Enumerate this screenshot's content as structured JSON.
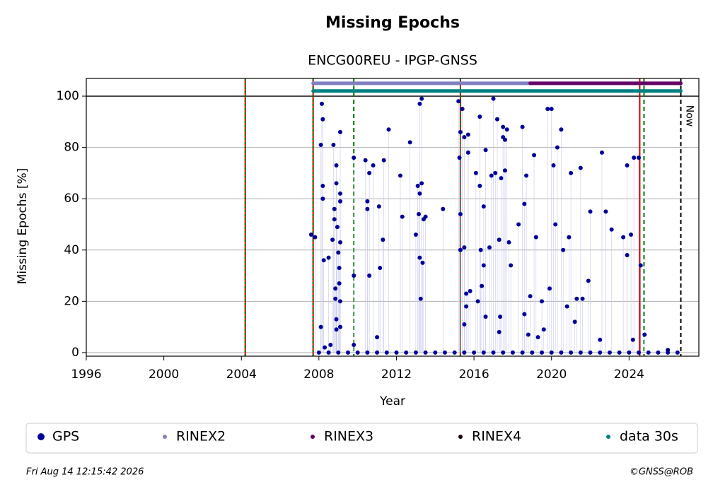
{
  "chart_data": {
    "type": "scatter",
    "title": "Missing Epochs",
    "subtitle": "ENCG00REU - IPGP-GNSS",
    "x_label": "Year",
    "y_label": "Missing Epochs [%]",
    "xlim": [
      1996.0,
      2027.6
    ],
    "ylim": [
      -1.4,
      106.9
    ],
    "xticks": [
      1996,
      2000,
      2004,
      2008,
      2012,
      2016,
      2020,
      2024
    ],
    "yticks": [
      0,
      20,
      40,
      60,
      80,
      100
    ],
    "grid": true,
    "ref_line": 100,
    "series": [
      {
        "name": "GPS",
        "color": "#000099",
        "x": [
          2007.6,
          2007.8,
          2008.1,
          2008.15,
          2008.2,
          2008.2,
          2008.2,
          2008.25,
          2008.1,
          2008.3,
          2008.5,
          2008.6,
          2008.7,
          2008.75,
          2008.8,
          2008.8,
          2008.85,
          2008.85,
          2008.9,
          2008.9,
          2008.9,
          2008.9,
          2008.95,
          2009.0,
          2009.05,
          2009.1,
          2009.1,
          2009.1,
          2009.1,
          2009.1,
          2009.05,
          2009.1,
          2009.8,
          2009.8,
          2009.8,
          2010.4,
          2010.5,
          2010.5,
          2010.6,
          2010.6,
          2010.8,
          2011.0,
          2011.1,
          2011.15,
          2011.3,
          2011.35,
          2011.6,
          2012.2,
          2012.3,
          2012.7,
          2013.0,
          2013.1,
          2013.15,
          2013.2,
          2013.2,
          2013.2,
          2013.25,
          2013.3,
          2013.3,
          2013.35,
          2013.4,
          2013.5,
          2014.4,
          2015.2,
          2015.25,
          2015.3,
          2015.3,
          2015.3,
          2015.4,
          2015.5,
          2015.5,
          2015.6,
          2015.6,
          2015.7,
          2015.7,
          2015.5,
          2015.8,
          2016.1,
          2016.2,
          2016.3,
          2016.3,
          2016.35,
          2016.4,
          2016.5,
          2016.5,
          2016.6,
          2016.6,
          2016.8,
          2016.9,
          2017.0,
          2017.1,
          2017.2,
          2017.3,
          2017.3,
          2017.35,
          2017.4,
          2017.5,
          2017.5,
          2017.6,
          2017.6,
          2017.7,
          2017.8,
          2017.9,
          2018.3,
          2018.5,
          2018.6,
          2018.6,
          2018.7,
          2018.8,
          2018.9,
          2019.1,
          2019.2,
          2019.3,
          2019.5,
          2019.6,
          2019.8,
          2019.9,
          2020.0,
          2020.1,
          2020.2,
          2020.3,
          2020.5,
          2020.6,
          2020.8,
          2020.9,
          2021.0,
          2021.2,
          2021.3,
          2021.5,
          2021.6,
          2021.9,
          2022.0,
          2022.5,
          2022.6,
          2022.8,
          2023.1,
          2023.7,
          2023.9,
          2023.9,
          2024.1,
          2024.2,
          2024.25,
          2024.5,
          2024.6,
          2024.8,
          2026.0,
          2008.0,
          2008.5,
          2009.0,
          2009.5,
          2010.0,
          2010.5,
          2011.0,
          2011.5,
          2012.0,
          2012.5,
          2013.0,
          2013.5,
          2014.0,
          2014.5,
          2015.0,
          2015.5,
          2016.0,
          2016.5,
          2017.0,
          2017.5,
          2018.0,
          2018.5,
          2019.0,
          2019.5,
          2020.0,
          2020.5,
          2021.0,
          2021.5,
          2022.0,
          2022.5,
          2023.0,
          2023.5,
          2024.0,
          2024.5,
          2025.0,
          2025.5,
          2026.0,
          2026.5
        ],
        "values": [
          46,
          45,
          81,
          97,
          91,
          65,
          60,
          36,
          10,
          2,
          37,
          3,
          44,
          81,
          56,
          52,
          25,
          21,
          13,
          9,
          66,
          73,
          49,
          39,
          33,
          86,
          62,
          59,
          43,
          20,
          27,
          10,
          76,
          30,
          3,
          75,
          56,
          59,
          70,
          30,
          73,
          6,
          57,
          33,
          44,
          75,
          87,
          69,
          53,
          82,
          46,
          65,
          54,
          97,
          62,
          37,
          21,
          99,
          66,
          35,
          52,
          53,
          56,
          98,
          76,
          86,
          54,
          40,
          95,
          84,
          41,
          23,
          18,
          78,
          85,
          11,
          24,
          70,
          20,
          92,
          65,
          40,
          26,
          34,
          57,
          79,
          14,
          41,
          69,
          99,
          70,
          91,
          44,
          8,
          14,
          68,
          84,
          88,
          71,
          83,
          87,
          43,
          34,
          50,
          88,
          15,
          58,
          69,
          7,
          22,
          77,
          45,
          6,
          20,
          9,
          95,
          25,
          95,
          73,
          50,
          80,
          87,
          40,
          18,
          45,
          70,
          12,
          21,
          72,
          21,
          28,
          55,
          5,
          78,
          55,
          48,
          45,
          38,
          73,
          46,
          5,
          76,
          76,
          34,
          7,
          1,
          0,
          0,
          0,
          0,
          0,
          0,
          0,
          0,
          0,
          0,
          0,
          0,
          0,
          0,
          0,
          0,
          0,
          0,
          0,
          0,
          0,
          0,
          0,
          0,
          0,
          0,
          0,
          0,
          0,
          0,
          0,
          0,
          0,
          0,
          0,
          0,
          0,
          0
        ]
      },
      {
        "name": "RINEX2",
        "color": "#8080c0",
        "x": [
          2007.7,
          2018.9
        ],
        "values": [
          105,
          105
        ]
      },
      {
        "name": "RINEX3",
        "color": "#660066",
        "x": [
          2018.9,
          2026.67
        ],
        "values": [
          105,
          105
        ]
      },
      {
        "name": "RINEX4",
        "color": "#1a0010",
        "x": [],
        "values": []
      },
      {
        "name": "data 30s",
        "color": "#008080",
        "x": [
          2007.7,
          2026.67
        ],
        "values": [
          102,
          102
        ]
      }
    ],
    "vlines": [
      {
        "x": 2004.2,
        "colors": [
          "#cc0000",
          "#007700"
        ]
      },
      {
        "x": 2007.7,
        "colors": [
          "#cc0000",
          "#007700"
        ]
      },
      {
        "x": 2009.8,
        "colors": [
          "#007700"
        ]
      },
      {
        "x": 2015.3,
        "colors": [
          "#cc0000",
          "#007700"
        ]
      },
      {
        "x": 2024.55,
        "colors": [
          "#cc0000"
        ]
      },
      {
        "x": 2024.77,
        "colors": [
          "#007700"
        ]
      },
      {
        "x": 2026.67,
        "colors": [
          "#000000"
        ]
      }
    ],
    "now_label": "Now",
    "timestamp": "Fri Aug 14 12:15:42 2026",
    "credit": "©GNSS@ROB"
  }
}
